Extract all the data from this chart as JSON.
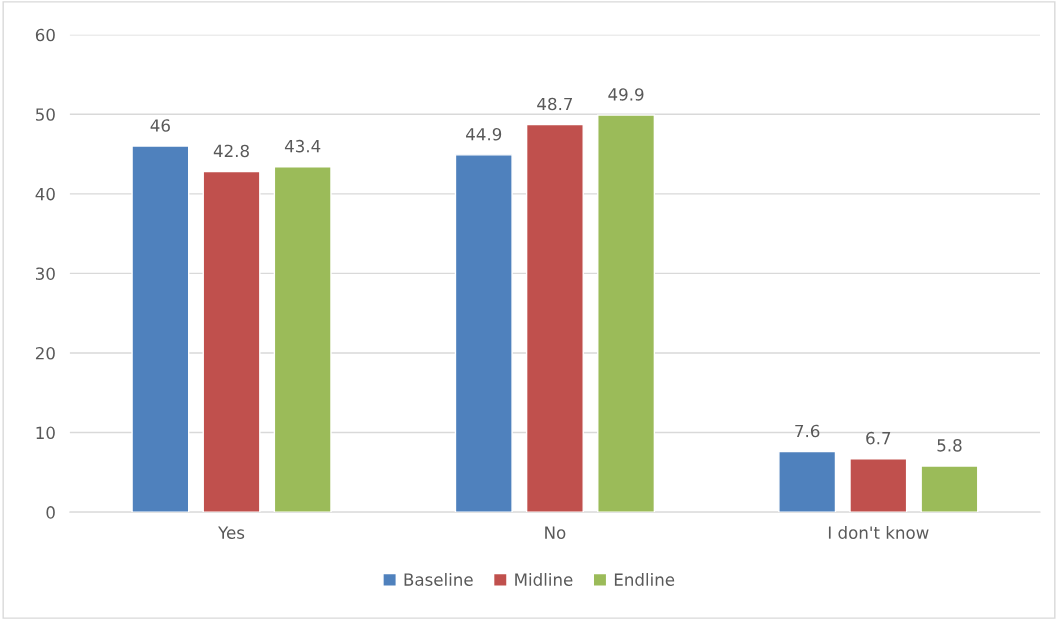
{
  "chart_data": {
    "type": "bar",
    "categories": [
      "Yes",
      "No",
      "I don't know"
    ],
    "series": [
      {
        "name": "Baseline",
        "color": "#4f81bd",
        "values": [
          46,
          44.9,
          7.6
        ]
      },
      {
        "name": "Midline",
        "color": "#c0504d",
        "values": [
          42.8,
          48.7,
          6.7
        ]
      },
      {
        "name": "Endline",
        "color": "#9bbb59",
        "values": [
          43.4,
          49.9,
          5.8
        ]
      }
    ],
    "ylim": [
      0,
      60
    ],
    "yticks": [
      0,
      10,
      20,
      30,
      40,
      50,
      60
    ],
    "grid": "y",
    "legend": "bottom",
    "data_labels": true
  }
}
